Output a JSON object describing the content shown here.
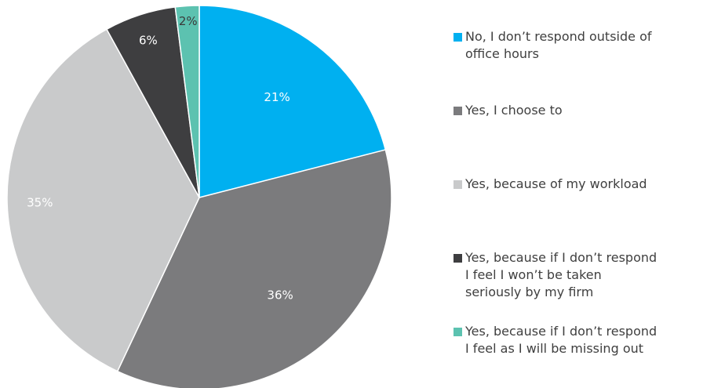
{
  "chart_data": {
    "type": "pie",
    "slices": [
      {
        "label": "No, I don’t respond outside of\noffice hours",
        "value": 21,
        "display": "21%",
        "color": "#00b0f0",
        "text_color": "#ffffff"
      },
      {
        "label": "Yes, I choose to",
        "value": 36,
        "display": "36%",
        "color": "#7b7b7d",
        "text_color": "#ffffff"
      },
      {
        "label": "Yes, because of my workload",
        "value": 35,
        "display": "35%",
        "color": "#c9cacb",
        "text_color": "#ffffff"
      },
      {
        "label": "Yes, because if I don’t respond\nI feel I won’t be taken\nseriously by my firm",
        "value": 6,
        "display": "6%",
        "color": "#3e3e40",
        "text_color": "#ffffff"
      },
      {
        "label": "Yes, because if I don’t respond\nI feel as I will be missing out",
        "value": 2,
        "display": "2%",
        "color": "#5cc2b0",
        "text_color": "#3a3a3a"
      }
    ],
    "start_angle_deg": 0,
    "direction": "clockwise",
    "legend_position": "right"
  }
}
